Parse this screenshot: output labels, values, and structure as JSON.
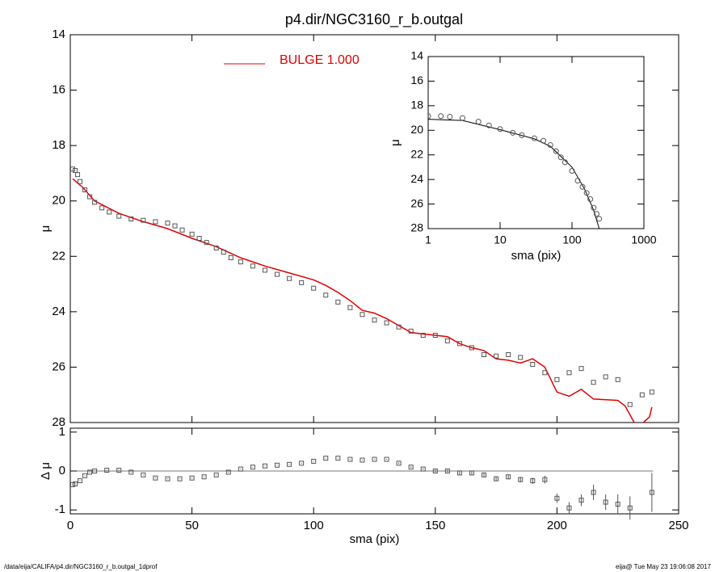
{
  "chart_data": [
    {
      "type": "scatter",
      "title": "p4.dir/NGC3160_r_b.outgal",
      "ylabel": "μ",
      "xlim": [
        0,
        250
      ],
      "ylim": [
        14,
        28
      ],
      "invert_y": true,
      "yticks": [
        14,
        16,
        18,
        20,
        22,
        24,
        26,
        28
      ],
      "series": [
        {
          "name": "BULGE  1.000",
          "type": "line",
          "color": "#e00000",
          "x": [
            1,
            5,
            10,
            20,
            30,
            40,
            50,
            60,
            70,
            80,
            90,
            100,
            105,
            110,
            115,
            120,
            125,
            130,
            140,
            150,
            155,
            160,
            165,
            170,
            175,
            180,
            185,
            190,
            195,
            200,
            205,
            210,
            215,
            225,
            228,
            233,
            238,
            239
          ],
          "values": [
            19.2,
            19.5,
            20.0,
            20.45,
            20.75,
            21.0,
            21.35,
            21.65,
            22.05,
            22.35,
            22.6,
            22.85,
            23.05,
            23.3,
            23.6,
            23.95,
            24.05,
            24.25,
            24.75,
            24.85,
            24.9,
            25.15,
            25.3,
            25.4,
            25.7,
            25.75,
            25.85,
            25.7,
            26.0,
            26.9,
            27.05,
            26.8,
            27.15,
            27.2,
            27.4,
            28.2,
            27.8,
            27.45
          ]
        },
        {
          "type": "scatter",
          "color": "#555555",
          "x": [
            1,
            2,
            3,
            4,
            6,
            8,
            10,
            13,
            16,
            20,
            25,
            30,
            35,
            40,
            43,
            46,
            50,
            53,
            56,
            60,
            63,
            66,
            70,
            75,
            80,
            85,
            90,
            95,
            100,
            105,
            110,
            115,
            120,
            125,
            130,
            135,
            140,
            145,
            150,
            155,
            160,
            165,
            170,
            175,
            180,
            185,
            190,
            195,
            200,
            205,
            210,
            215,
            220,
            225,
            230,
            235,
            239
          ],
          "values": [
            18.85,
            18.9,
            19.05,
            19.3,
            19.6,
            19.85,
            20.05,
            20.25,
            20.4,
            20.55,
            20.65,
            20.7,
            20.75,
            20.8,
            20.9,
            21.05,
            21.2,
            21.35,
            21.5,
            21.7,
            21.85,
            22.05,
            22.2,
            22.35,
            22.5,
            22.65,
            22.8,
            22.95,
            23.15,
            23.4,
            23.65,
            23.85,
            24.1,
            24.3,
            24.4,
            24.55,
            24.7,
            24.85,
            24.85,
            25.05,
            25.15,
            25.3,
            25.55,
            25.6,
            25.55,
            25.65,
            25.9,
            26.2,
            26.45,
            26.2,
            26.05,
            26.55,
            26.35,
            26.45,
            27.35,
            27.0,
            26.9
          ]
        }
      ]
    },
    {
      "type": "scatter",
      "xlabel": "sma (pix)",
      "ylabel": "Δ μ",
      "xlim": [
        0,
        250
      ],
      "xticks": [
        0,
        50,
        100,
        150,
        200,
        250
      ],
      "ylim": [
        -1.1,
        1.1
      ],
      "yticks": [
        -1,
        0,
        1
      ],
      "color": "#555555",
      "x": [
        1,
        2,
        4,
        6,
        8,
        10,
        15,
        20,
        25,
        30,
        35,
        40,
        45,
        50,
        55,
        60,
        65,
        70,
        75,
        80,
        85,
        90,
        95,
        100,
        105,
        110,
        115,
        120,
        125,
        130,
        135,
        140,
        145,
        150,
        155,
        160,
        165,
        170,
        175,
        180,
        185,
        190,
        195,
        200,
        205,
        210,
        215,
        220,
        225,
        230,
        239
      ],
      "values": [
        -0.35,
        -0.33,
        -0.25,
        -0.12,
        -0.03,
        0,
        0.02,
        0.02,
        -0.03,
        -0.1,
        -0.18,
        -0.2,
        -0.2,
        -0.18,
        -0.15,
        -0.1,
        -0.03,
        0.05,
        0.1,
        0.13,
        0.15,
        0.17,
        0.2,
        0.25,
        0.33,
        0.33,
        0.3,
        0.28,
        0.3,
        0.3,
        0.2,
        0.1,
        0.05,
        0.0,
        0.0,
        -0.05,
        -0.05,
        -0.1,
        -0.2,
        -0.15,
        -0.22,
        -0.25,
        -0.22,
        -0.7,
        -0.95,
        -0.75,
        -0.55,
        -0.8,
        -0.85,
        -0.95,
        -0.55
      ],
      "errors": [
        0.01,
        0.01,
        0.01,
        0.01,
        0.01,
        0.01,
        0.01,
        0.01,
        0.01,
        0.01,
        0.01,
        0.01,
        0.01,
        0.01,
        0.01,
        0.01,
        0.01,
        0.01,
        0.01,
        0.01,
        0.01,
        0.01,
        0.01,
        0.01,
        0.01,
        0.01,
        0.01,
        0.01,
        0.01,
        0.01,
        0.02,
        0.02,
        0.02,
        0.03,
        0.03,
        0.04,
        0.04,
        0.05,
        0.06,
        0.06,
        0.07,
        0.08,
        0.1,
        0.12,
        0.15,
        0.15,
        0.2,
        0.2,
        0.25,
        0.3,
        0.5
      ]
    },
    {
      "type": "scatter",
      "xlabel": "sma (pix)",
      "ylabel": "μ",
      "log_x": true,
      "xlim": [
        1,
        1000
      ],
      "xticks": [
        1,
        10,
        100,
        1000
      ],
      "ylim": [
        14,
        28
      ],
      "invert_y": true,
      "yticks": [
        14,
        16,
        18,
        20,
        22,
        24,
        26,
        28
      ],
      "series": [
        {
          "type": "line",
          "color": "#000000",
          "x": [
            1,
            3,
            10,
            30,
            50,
            100,
            150,
            200,
            239
          ],
          "values": [
            19.1,
            19.2,
            19.95,
            20.7,
            21.3,
            23.0,
            24.8,
            26.5,
            28
          ]
        },
        {
          "type": "scatter",
          "color": "#555555",
          "x": [
            1,
            1.5,
            2,
            3,
            5,
            7,
            10,
            15,
            20,
            30,
            40,
            50,
            60,
            70,
            80,
            100,
            120,
            140,
            160,
            180,
            200,
            220,
            239
          ],
          "values": [
            18.85,
            18.85,
            18.9,
            19.0,
            19.3,
            19.6,
            19.9,
            20.2,
            20.4,
            20.65,
            20.85,
            21.2,
            21.7,
            22.2,
            22.6,
            23.3,
            24.1,
            24.6,
            25.1,
            25.6,
            26.3,
            26.8,
            27.2
          ]
        }
      ]
    }
  ],
  "footer": {
    "left": "/data/eija/CALIFA/p4.dir/NGC3160_r_b.outgal_1dprof",
    "right": "eija@  Tue May 23 19:06:08 2017"
  }
}
